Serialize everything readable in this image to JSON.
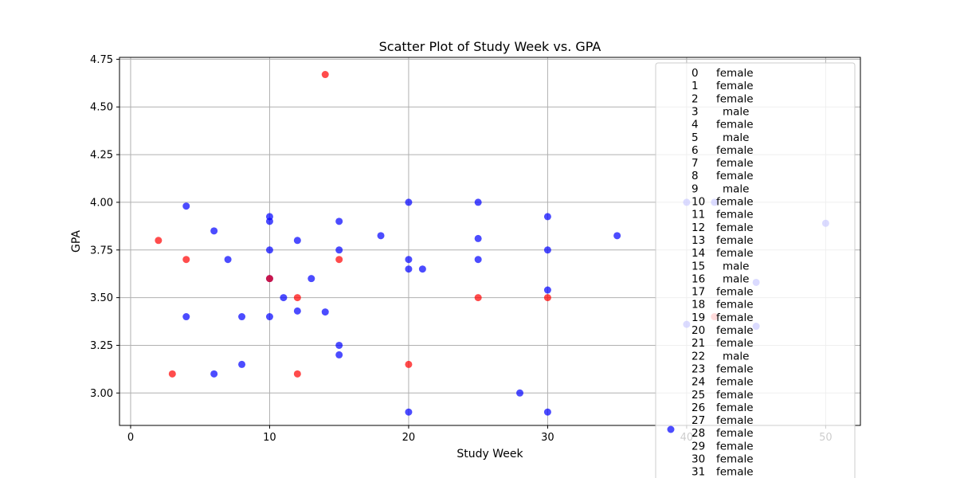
{
  "chart_data": {
    "type": "scatter",
    "title": "Scatter Plot of Study Week vs. GPA",
    "xlabel": "Study Week",
    "ylabel": "GPA",
    "xlim": [
      -0.8,
      52.5
    ],
    "ylim": [
      2.83,
      4.76
    ],
    "xticks": [
      0,
      10,
      20,
      30,
      40,
      50
    ],
    "yticks": [
      3.0,
      3.25,
      3.5,
      3.75,
      4.0,
      4.25,
      4.5,
      4.75
    ],
    "xtick_labels": [
      "0",
      "10",
      "20",
      "30",
      "40",
      "50"
    ],
    "ytick_labels": [
      "3.00",
      "3.25",
      "3.50",
      "3.75",
      "4.00",
      "4.25",
      "4.50",
      "4.75"
    ],
    "grid": true,
    "series": [
      {
        "color": "#0000ff",
        "points": [
          [
            4,
            3.98
          ],
          [
            6,
            3.85
          ],
          [
            4,
            3.4
          ],
          [
            6,
            3.1
          ],
          [
            7,
            3.7
          ],
          [
            8,
            3.4
          ],
          [
            8,
            3.15
          ],
          [
            10,
            3.925
          ],
          [
            10,
            3.9
          ],
          [
            10,
            3.75
          ],
          [
            10,
            3.6
          ],
          [
            10,
            3.4
          ],
          [
            11,
            3.5
          ],
          [
            12,
            3.8
          ],
          [
            12,
            3.43
          ],
          [
            13,
            3.6
          ],
          [
            14,
            3.425
          ],
          [
            15,
            3.9
          ],
          [
            15,
            3.75
          ],
          [
            15,
            3.25
          ],
          [
            15,
            3.2
          ],
          [
            18,
            3.825
          ],
          [
            20,
            4.0
          ],
          [
            20,
            3.7
          ],
          [
            20,
            3.65
          ],
          [
            20,
            2.9
          ],
          [
            21,
            3.65
          ],
          [
            25,
            4.0
          ],
          [
            25,
            3.81
          ],
          [
            25,
            3.7
          ],
          [
            28,
            3.0
          ],
          [
            30,
            3.925
          ],
          [
            30,
            3.75
          ],
          [
            30,
            3.54
          ],
          [
            30,
            2.9
          ],
          [
            35,
            3.825
          ],
          [
            40,
            4.0
          ],
          [
            42,
            4.0
          ],
          [
            50,
            3.89
          ],
          [
            45,
            3.58
          ],
          [
            40,
            3.36
          ],
          [
            45,
            3.35
          ]
        ]
      },
      {
        "color": "#ff0000",
        "points": [
          [
            14,
            4.67
          ],
          [
            2,
            3.8
          ],
          [
            4,
            3.7
          ],
          [
            15,
            3.7
          ],
          [
            10,
            3.6
          ],
          [
            12,
            3.5
          ],
          [
            25,
            3.5
          ],
          [
            30,
            3.5
          ],
          [
            3,
            3.1
          ],
          [
            12,
            3.1
          ],
          [
            20,
            3.15
          ],
          [
            42,
            3.4
          ]
        ]
      }
    ],
    "legend": {
      "placement": "right",
      "entries": [
        {
          "index": "0",
          "label": "female"
        },
        {
          "index": "1",
          "label": "female"
        },
        {
          "index": "2",
          "label": "female"
        },
        {
          "index": "3",
          "label": "male"
        },
        {
          "index": "4",
          "label": "female"
        },
        {
          "index": "5",
          "label": "male"
        },
        {
          "index": "6",
          "label": "female"
        },
        {
          "index": "7",
          "label": "female"
        },
        {
          "index": "8",
          "label": "female"
        },
        {
          "index": "9",
          "label": "male"
        },
        {
          "index": "10",
          "label": "female"
        },
        {
          "index": "11",
          "label": "female"
        },
        {
          "index": "12",
          "label": "female"
        },
        {
          "index": "13",
          "label": "female"
        },
        {
          "index": "14",
          "label": "female"
        },
        {
          "index": "15",
          "label": "male"
        },
        {
          "index": "16",
          "label": "male"
        },
        {
          "index": "17",
          "label": "female"
        },
        {
          "index": "18",
          "label": "female"
        },
        {
          "index": "19",
          "label": "female"
        },
        {
          "index": "20",
          "label": "female"
        },
        {
          "index": "21",
          "label": "female"
        },
        {
          "index": "22",
          "label": "male"
        },
        {
          "index": "23",
          "label": "female"
        },
        {
          "index": "24",
          "label": "female"
        },
        {
          "index": "25",
          "label": "female"
        },
        {
          "index": "26",
          "label": "female"
        },
        {
          "index": "27",
          "label": "female"
        },
        {
          "index": "28",
          "label": "female"
        },
        {
          "index": "29",
          "label": "female"
        },
        {
          "index": "30",
          "label": "female"
        },
        {
          "index": "31",
          "label": "female"
        }
      ]
    }
  }
}
